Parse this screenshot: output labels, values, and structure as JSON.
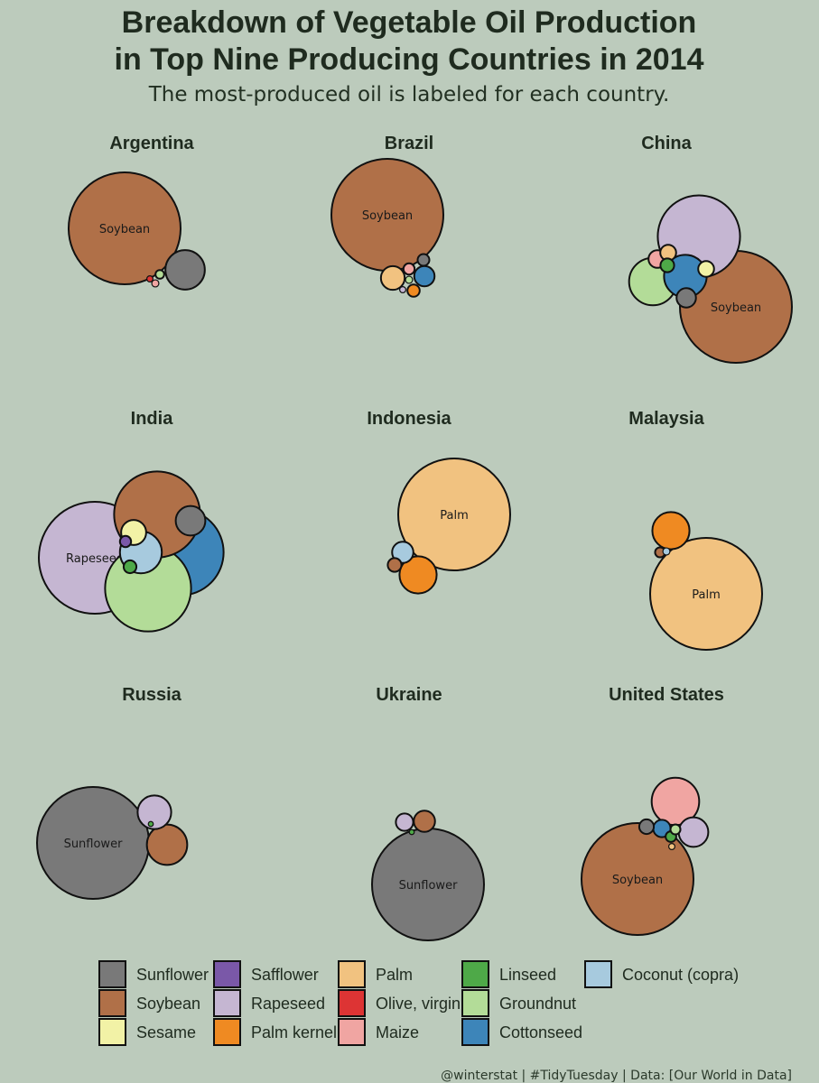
{
  "chart_data": {
    "type": "packed-bubble",
    "title": "Breakdown of Vegetable Oil Production\nin Top Nine Producing Countries in 2014",
    "subtitle": "The most-produced  oil is labeled for each country.",
    "caption": "@winterstat | #TidyTuesday | Data: [Our World in Data]",
    "legend": {
      "placement": "bottom",
      "items": [
        {
          "key": "sunflower",
          "label": "Sunflower"
        },
        {
          "key": "soybean",
          "label": "Soybean"
        },
        {
          "key": "sesame",
          "label": "Sesame"
        },
        {
          "key": "safflower",
          "label": "Safflower"
        },
        {
          "key": "rapeseed",
          "label": "Rapeseed"
        },
        {
          "key": "palm_kernel",
          "label": "Palm kernel"
        },
        {
          "key": "palm",
          "label": "Palm"
        },
        {
          "key": "olive",
          "label": "Olive, virgin"
        },
        {
          "key": "maize",
          "label": "Maize"
        },
        {
          "key": "linseed",
          "label": "Linseed"
        },
        {
          "key": "groundnut",
          "label": "Groundnut"
        },
        {
          "key": "cottonseed",
          "label": "Cottonseed"
        },
        {
          "key": "coconut",
          "label": "Coconut (copra)"
        }
      ]
    },
    "colors": {
      "sunflower": "#797979",
      "soybean": "#b07048",
      "sesame": "#f2f2a6",
      "safflower": "#7a58a8",
      "rapeseed": "#c5b6d2",
      "palm_kernel": "#ef8a22",
      "palm": "#f1c280",
      "olive": "#dd3434",
      "maize": "#f0a5a2",
      "linseed": "#4ea948",
      "groundnut": "#b3dc98",
      "cottonseed": "#3d85b9",
      "coconut": "#a7cade"
    },
    "panels": [
      {
        "country": "Argentina",
        "label": "Soybean",
        "bubbles": [
          {
            "oil": "soybean",
            "value": 100
          },
          {
            "oil": "sunflower",
            "value": 12.4
          },
          {
            "oil": "groundnut",
            "value": 0.6
          },
          {
            "oil": "maize",
            "value": 0.4
          },
          {
            "oil": "olive",
            "value": 0.3
          }
        ]
      },
      {
        "country": "Brazil",
        "label": "Soybean",
        "bubbles": [
          {
            "oil": "soybean",
            "value": 100
          },
          {
            "oil": "palm",
            "value": 4.5
          },
          {
            "oil": "cottonseed",
            "value": 3.3
          },
          {
            "oil": "palm_kernel",
            "value": 1.2
          },
          {
            "oil": "sunflower",
            "value": 1.1
          },
          {
            "oil": "maize",
            "value": 1.0
          },
          {
            "oil": "groundnut",
            "value": 0.4
          },
          {
            "oil": "rapeseed",
            "value": 0.3
          }
        ]
      },
      {
        "country": "China",
        "label": "Soybean",
        "bubbles": [
          {
            "oil": "soybean",
            "value": 100
          },
          {
            "oil": "rapeseed",
            "value": 54
          },
          {
            "oil": "groundnut",
            "value": 18
          },
          {
            "oil": "cottonseed",
            "value": 14.5
          },
          {
            "oil": "sunflower",
            "value": 3.0
          },
          {
            "oil": "maize",
            "value": 2.5
          },
          {
            "oil": "sesame",
            "value": 2.0
          },
          {
            "oil": "palm",
            "value": 2.0
          },
          {
            "oil": "linseed",
            "value": 1.5
          }
        ]
      },
      {
        "country": "India",
        "label": "Rapeseed",
        "bubbles": [
          {
            "oil": "rapeseed",
            "value": 100
          },
          {
            "oil": "cottonseed",
            "value": 59
          },
          {
            "oil": "groundnut",
            "value": 59
          },
          {
            "oil": "soybean",
            "value": 59
          },
          {
            "oil": "coconut",
            "value": 14
          },
          {
            "oil": "sunflower",
            "value": 7
          },
          {
            "oil": "sesame",
            "value": 5
          },
          {
            "oil": "linseed",
            "value": 1.3
          },
          {
            "oil": "safflower",
            "value": 1.0
          }
        ]
      },
      {
        "country": "Indonesia",
        "label": "Palm",
        "bubbles": [
          {
            "oil": "palm",
            "value": 100
          },
          {
            "oil": "palm_kernel",
            "value": 11
          },
          {
            "oil": "coconut",
            "value": 3.6
          },
          {
            "oil": "soybean",
            "value": 1.5
          }
        ]
      },
      {
        "country": "Malaysia",
        "label": "Palm",
        "bubbles": [
          {
            "oil": "palm",
            "value": 100
          },
          {
            "oil": "palm_kernel",
            "value": 11
          },
          {
            "oil": "soybean",
            "value": 0.8
          },
          {
            "oil": "coconut",
            "value": 0.4
          }
        ]
      },
      {
        "country": "Russia",
        "label": "Sunflower",
        "bubbles": [
          {
            "oil": "sunflower",
            "value": 100
          },
          {
            "oil": "soybean",
            "value": 13
          },
          {
            "oil": "rapeseed",
            "value": 9
          },
          {
            "oil": "linseed",
            "value": 0.2
          }
        ]
      },
      {
        "country": "Ukraine",
        "label": "Sunflower",
        "bubbles": [
          {
            "oil": "sunflower",
            "value": 100
          },
          {
            "oil": "soybean",
            "value": 3.6
          },
          {
            "oil": "rapeseed",
            "value": 2.4
          },
          {
            "oil": "linseed",
            "value": 0.2
          }
        ]
      },
      {
        "country": "United States",
        "label": "Soybean",
        "bubbles": [
          {
            "oil": "soybean",
            "value": 100
          },
          {
            "oil": "maize",
            "value": 18
          },
          {
            "oil": "rapeseed",
            "value": 7
          },
          {
            "oil": "cottonseed",
            "value": 2.4
          },
          {
            "oil": "sunflower",
            "value": 1.7
          },
          {
            "oil": "linseed",
            "value": 0.9
          },
          {
            "oil": "groundnut",
            "value": 0.8
          },
          {
            "oil": "palm",
            "value": 0.3
          }
        ]
      }
    ]
  }
}
